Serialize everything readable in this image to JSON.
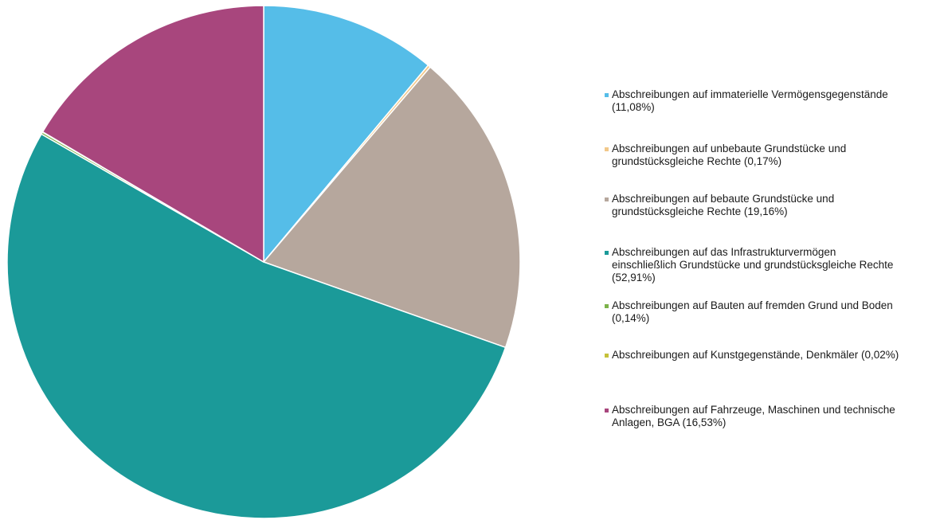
{
  "chart_data": {
    "type": "pie",
    "title": "",
    "legend_position": "right",
    "start_angle": "12 o'clock",
    "direction": "clockwise",
    "slices": [
      {
        "label": "Abschreibungen auf immaterielle Vermögensgegenstände\n(11,08%)",
        "value": 11.08,
        "color": "#55bde8"
      },
      {
        "label": "Abschreibungen auf unbebaute Grundstücke und\ngrundstücksgleiche Rechte (0,17%)",
        "value": 0.17,
        "color": "#f2c88a"
      },
      {
        "label": "Abschreibungen auf bebaute Grundstücke und\ngrundstücksgleiche Rechte (19,16%)",
        "value": 19.16,
        "color": "#b6a79d"
      },
      {
        "label": "Abschreibungen auf das Infrastrukturvermögen\neinschließlich Grundstücke und grundstücksgleiche Rechte\n(52,91%)",
        "value": 52.91,
        "color": "#1b9a99"
      },
      {
        "label": "Abschreibungen auf Bauten auf fremden Grund und Boden\n(0,14%)",
        "value": 0.14,
        "color": "#7cb24a"
      },
      {
        "label": "Abschreibungen auf Kunstgegenstände, Denkmäler (0,02%)",
        "value": 0.02,
        "color": "#c5c13a"
      },
      {
        "label": "Abschreibungen auf Fahrzeuge, Maschinen und technische\nAnlagen, BGA (16,53%)",
        "value": 16.53,
        "color": "#a8467d"
      }
    ]
  }
}
